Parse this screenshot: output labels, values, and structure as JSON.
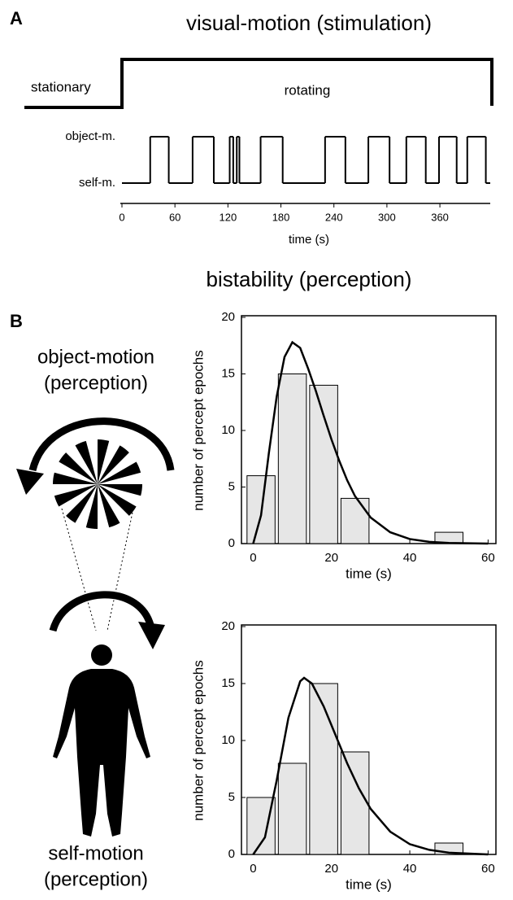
{
  "panel_labels": [
    "A",
    "B"
  ],
  "section_title": "bistability (perception)",
  "illustration": {
    "object_label": [
      "object-motion",
      "(perception)"
    ],
    "self_label": [
      "self-motion",
      "(perception)"
    ]
  },
  "chart_data": [
    {
      "type": "step",
      "title": "visual-motion (stimulation)",
      "stimulus": {
        "labels": [
          "stationary",
          "rotating"
        ],
        "onset": 0
      },
      "x": [
        0,
        32,
        53,
        80,
        104,
        122,
        126,
        130,
        133,
        157,
        182,
        230,
        253,
        279,
        303,
        322,
        344,
        359,
        379,
        391,
        412
      ],
      "values": [
        0,
        1,
        0,
        1,
        0,
        1,
        0,
        1,
        0,
        1,
        0,
        1,
        0,
        1,
        0,
        1,
        0,
        1,
        0,
        1,
        0
      ],
      "xlim": [
        0,
        417
      ],
      "xticks": [
        0,
        60,
        120,
        180,
        240,
        300,
        360
      ],
      "ylim": [
        0,
        1
      ],
      "yticks": [
        {
          "value": 0,
          "label": "self-m."
        },
        {
          "value": 1,
          "label": "object-m."
        }
      ],
      "xlabel": "time (s)",
      "color": "#000000"
    },
    {
      "type": "histogram",
      "bins": [
        -2,
        6,
        14,
        22,
        30,
        38,
        46,
        54
      ],
      "values": [
        6,
        15,
        14,
        4,
        0,
        0,
        1
      ],
      "color": "#e6e6e6",
      "fit": {
        "x": [
          0,
          2,
          4,
          6,
          8,
          10,
          12,
          14,
          16,
          18,
          20,
          22,
          24,
          26,
          30,
          35,
          40,
          45,
          50,
          60
        ],
        "values": [
          0,
          2.5,
          8,
          13,
          16.5,
          17.8,
          17.3,
          15.5,
          13.5,
          11.3,
          9.2,
          7.3,
          5.6,
          4.2,
          2.3,
          1,
          0.4,
          0.15,
          0.05,
          0
        ]
      },
      "xlim": [
        -3,
        62
      ],
      "xticks": [
        0,
        20,
        40,
        60
      ],
      "ylim": [
        0,
        20
      ],
      "yticks": [
        0,
        5,
        10,
        15,
        20
      ],
      "xlabel": "time (s)",
      "ylabel": "number of percept epochs"
    },
    {
      "type": "histogram",
      "bins": [
        -2,
        6,
        14,
        22,
        30,
        38,
        46,
        54
      ],
      "values": [
        5,
        8,
        15,
        9,
        0,
        0,
        1
      ],
      "color": "#e6e6e6",
      "fit": {
        "x": [
          0,
          3,
          6,
          9,
          12,
          13,
          15,
          18,
          21,
          24,
          27,
          30,
          35,
          40,
          45,
          50,
          60
        ],
        "values": [
          0,
          1.5,
          6.5,
          12,
          15.2,
          15.5,
          15,
          13,
          10.5,
          8,
          5.8,
          4,
          2,
          0.9,
          0.4,
          0.15,
          0
        ]
      },
      "xlim": [
        -3,
        62
      ],
      "xticks": [
        0,
        20,
        40,
        60
      ],
      "ylim": [
        0,
        20
      ],
      "yticks": [
        0,
        5,
        10,
        15,
        20
      ],
      "xlabel": "time (s)",
      "ylabel": "number of percept epochs"
    }
  ]
}
